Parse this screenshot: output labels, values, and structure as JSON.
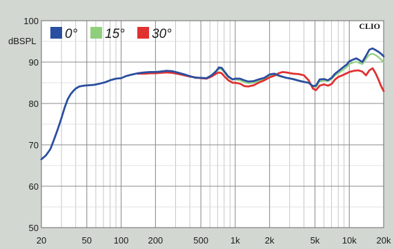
{
  "chart_data": {
    "type": "line",
    "title": "",
    "xlabel": "",
    "ylabel": "dBSPL",
    "brand": "CLIO",
    "x_scale": "log",
    "xlim": [
      20,
      20000
    ],
    "ylim": [
      50,
      100
    ],
    "grid": true,
    "legend_position": "top-left",
    "x_ticks": [
      {
        "value": 20,
        "label": "20"
      },
      {
        "value": 50,
        "label": "50"
      },
      {
        "value": 100,
        "label": "100"
      },
      {
        "value": 200,
        "label": "200"
      },
      {
        "value": 500,
        "label": "500"
      },
      {
        "value": 1000,
        "label": "1k"
      },
      {
        "value": 2000,
        "label": "2k"
      },
      {
        "value": 5000,
        "label": "5k"
      },
      {
        "value": 10000,
        "label": "10k"
      },
      {
        "value": 20000,
        "label": "20k"
      }
    ],
    "y_ticks": [
      {
        "value": 50,
        "label": "50"
      },
      {
        "value": 60,
        "label": "60"
      },
      {
        "value": 70,
        "label": "70"
      },
      {
        "value": 80,
        "label": "80"
      },
      {
        "value": 90,
        "label": "90"
      },
      {
        "value": 100,
        "label": "100"
      }
    ],
    "series": [
      {
        "name": "0°",
        "color": "#2a4fa0",
        "points": [
          [
            20,
            66.5
          ],
          [
            22,
            67.5
          ],
          [
            24,
            69
          ],
          [
            26,
            71.5
          ],
          [
            28,
            74
          ],
          [
            30,
            76.5
          ],
          [
            32,
            79
          ],
          [
            34,
            81
          ],
          [
            36,
            82.2
          ],
          [
            38,
            83
          ],
          [
            40,
            83.6
          ],
          [
            43,
            84.1
          ],
          [
            47,
            84.3
          ],
          [
            52,
            84.4
          ],
          [
            58,
            84.5
          ],
          [
            65,
            84.8
          ],
          [
            72,
            85.1
          ],
          [
            80,
            85.6
          ],
          [
            90,
            86
          ],
          [
            100,
            86.1
          ],
          [
            110,
            86.6
          ],
          [
            125,
            87
          ],
          [
            140,
            87.3
          ],
          [
            160,
            87.5
          ],
          [
            180,
            87.6
          ],
          [
            200,
            87.6
          ],
          [
            220,
            87.7
          ],
          [
            250,
            87.9
          ],
          [
            280,
            87.8
          ],
          [
            320,
            87.4
          ],
          [
            360,
            87
          ],
          [
            400,
            86.6
          ],
          [
            450,
            86.2
          ],
          [
            500,
            86.2
          ],
          [
            560,
            86.1
          ],
          [
            620,
            86.8
          ],
          [
            680,
            87.8
          ],
          [
            720,
            88.7
          ],
          [
            760,
            88.6
          ],
          [
            800,
            87.8
          ],
          [
            870,
            86.5
          ],
          [
            950,
            85.8
          ],
          [
            1000,
            86
          ],
          [
            1100,
            86
          ],
          [
            1200,
            85.6
          ],
          [
            1300,
            85.3
          ],
          [
            1450,
            85.4
          ],
          [
            1600,
            85.8
          ],
          [
            1800,
            86.2
          ],
          [
            2000,
            87
          ],
          [
            2200,
            87.2
          ],
          [
            2500,
            86.6
          ],
          [
            2800,
            86.2
          ],
          [
            3200,
            85.9
          ],
          [
            3600,
            85.5
          ],
          [
            4000,
            85.2
          ],
          [
            4400,
            85
          ],
          [
            4800,
            84.2
          ],
          [
            5100,
            84.3
          ],
          [
            5500,
            85.8
          ],
          [
            6000,
            85.9
          ],
          [
            6500,
            85.6
          ],
          [
            7000,
            86.2
          ],
          [
            7500,
            87.2
          ],
          [
            8000,
            87.8
          ],
          [
            8700,
            88.6
          ],
          [
            9500,
            89.4
          ],
          [
            10000,
            90.2
          ],
          [
            10800,
            90.6
          ],
          [
            11500,
            90.9
          ],
          [
            12200,
            90.5
          ],
          [
            13000,
            90
          ],
          [
            14000,
            91.5
          ],
          [
            15000,
            93
          ],
          [
            16000,
            93.3
          ],
          [
            17000,
            92.9
          ],
          [
            18000,
            92.5
          ],
          [
            19000,
            92
          ],
          [
            20000,
            91.4
          ]
        ]
      },
      {
        "name": "15°",
        "color": "#8fcf7c",
        "points": [
          [
            20,
            66.5
          ],
          [
            22,
            67.5
          ],
          [
            24,
            69
          ],
          [
            26,
            71.5
          ],
          [
            28,
            74
          ],
          [
            30,
            76.5
          ],
          [
            32,
            79
          ],
          [
            34,
            81
          ],
          [
            36,
            82.2
          ],
          [
            38,
            83
          ],
          [
            40,
            83.6
          ],
          [
            43,
            84.1
          ],
          [
            47,
            84.3
          ],
          [
            52,
            84.4
          ],
          [
            58,
            84.5
          ],
          [
            65,
            84.8
          ],
          [
            72,
            85.1
          ],
          [
            80,
            85.6
          ],
          [
            90,
            86
          ],
          [
            100,
            86.1
          ],
          [
            110,
            86.6
          ],
          [
            125,
            87
          ],
          [
            140,
            87.3
          ],
          [
            160,
            87.5
          ],
          [
            180,
            87.6
          ],
          [
            200,
            87.6
          ],
          [
            220,
            87.7
          ],
          [
            250,
            87.8
          ],
          [
            280,
            87.7
          ],
          [
            320,
            87.3
          ],
          [
            360,
            86.9
          ],
          [
            400,
            86.5
          ],
          [
            450,
            86.2
          ],
          [
            500,
            86.2
          ],
          [
            560,
            86.1
          ],
          [
            620,
            86.7
          ],
          [
            680,
            87.6
          ],
          [
            720,
            88.3
          ],
          [
            760,
            88.3
          ],
          [
            800,
            87.5
          ],
          [
            870,
            86.3
          ],
          [
            950,
            85.8
          ],
          [
            1000,
            85.8
          ],
          [
            1100,
            85.6
          ],
          [
            1200,
            85.1
          ],
          [
            1300,
            84.9
          ],
          [
            1450,
            85
          ],
          [
            1600,
            85.4
          ],
          [
            1800,
            86
          ],
          [
            2000,
            86.7
          ],
          [
            2200,
            86.9
          ],
          [
            2500,
            86.5
          ],
          [
            2800,
            86.2
          ],
          [
            3200,
            86
          ],
          [
            3600,
            85.6
          ],
          [
            4000,
            85.3
          ],
          [
            4400,
            85
          ],
          [
            4800,
            84
          ],
          [
            5100,
            84
          ],
          [
            5500,
            85.3
          ],
          [
            6000,
            85.5
          ],
          [
            6500,
            85.4
          ],
          [
            7000,
            85.9
          ],
          [
            7500,
            86.8
          ],
          [
            8000,
            87.3
          ],
          [
            8700,
            88
          ],
          [
            9500,
            88.8
          ],
          [
            10000,
            89.5
          ],
          [
            10800,
            89.9
          ],
          [
            11500,
            90.1
          ],
          [
            12200,
            89.8
          ],
          [
            13000,
            89.5
          ],
          [
            14000,
            90.8
          ],
          [
            15000,
            91.8
          ],
          [
            16000,
            92
          ],
          [
            17000,
            91.7
          ],
          [
            18000,
            91.2
          ],
          [
            19000,
            90.6
          ],
          [
            20000,
            90
          ]
        ]
      },
      {
        "name": "30°",
        "color": "#e03131",
        "points": [
          [
            140,
            87.2
          ],
          [
            160,
            87.2
          ],
          [
            180,
            87.3
          ],
          [
            200,
            87.3
          ],
          [
            220,
            87.4
          ],
          [
            250,
            87.5
          ],
          [
            280,
            87.4
          ],
          [
            320,
            87.1
          ],
          [
            360,
            86.8
          ],
          [
            400,
            86.5
          ],
          [
            450,
            86.3
          ],
          [
            500,
            86.1
          ],
          [
            560,
            86
          ],
          [
            620,
            86.5
          ],
          [
            680,
            87.2
          ],
          [
            720,
            87.5
          ],
          [
            760,
            87.3
          ],
          [
            800,
            86.6
          ],
          [
            870,
            85.6
          ],
          [
            950,
            85
          ],
          [
            1000,
            85
          ],
          [
            1100,
            84.8
          ],
          [
            1200,
            84.2
          ],
          [
            1300,
            84.1
          ],
          [
            1450,
            84.4
          ],
          [
            1600,
            85
          ],
          [
            1800,
            85.6
          ],
          [
            2000,
            86.3
          ],
          [
            2200,
            86.7
          ],
          [
            2400,
            87.3
          ],
          [
            2600,
            87.6
          ],
          [
            2800,
            87.5
          ],
          [
            3200,
            87.2
          ],
          [
            3600,
            87.1
          ],
          [
            4000,
            86.8
          ],
          [
            4400,
            85.6
          ],
          [
            4800,
            83.6
          ],
          [
            5100,
            83.2
          ],
          [
            5500,
            84.3
          ],
          [
            6000,
            84.6
          ],
          [
            6500,
            84.3
          ],
          [
            7000,
            84.7
          ],
          [
            7500,
            85.8
          ],
          [
            8000,
            86.4
          ],
          [
            8700,
            86.8
          ],
          [
            9500,
            87.3
          ],
          [
            10000,
            87.6
          ],
          [
            11000,
            87.9
          ],
          [
            12000,
            88
          ],
          [
            13000,
            87.7
          ],
          [
            14000,
            86.8
          ],
          [
            15000,
            88
          ],
          [
            16000,
            88.5
          ],
          [
            17000,
            87.3
          ],
          [
            18000,
            85.8
          ],
          [
            19000,
            84.2
          ],
          [
            20000,
            83
          ]
        ]
      }
    ]
  }
}
